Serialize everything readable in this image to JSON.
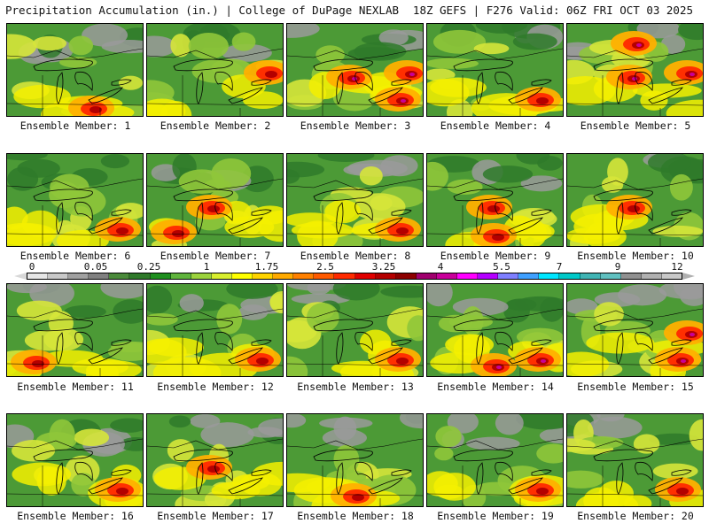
{
  "header": {
    "title": "Precipitation Accumulation (in.) | College of DuPage NEXLAB",
    "run_info": "18Z GEFS | F276 Valid: 06Z FRI OCT 03 2025"
  },
  "caption_prefix": "Ensemble Member: ",
  "members": [
    {
      "number": "1",
      "label": "Ensemble Member: 1",
      "heavy": [
        "south-center"
      ]
    },
    {
      "number": "2",
      "label": "Ensemble Member: 2",
      "heavy": [
        "east"
      ]
    },
    {
      "number": "3",
      "label": "Ensemble Member: 3",
      "heavy": [
        "center",
        "east",
        "southeast"
      ]
    },
    {
      "number": "4",
      "label": "Ensemble Member: 4",
      "heavy": [
        "southeast"
      ]
    },
    {
      "number": "5",
      "label": "Ensemble Member: 5",
      "heavy": [
        "north",
        "east",
        "center"
      ]
    },
    {
      "number": "6",
      "label": "Ensemble Member: 6",
      "heavy": [
        "southeast"
      ]
    },
    {
      "number": "7",
      "label": "Ensemble Member: 7",
      "heavy": [
        "southwest",
        "center"
      ]
    },
    {
      "number": "8",
      "label": "Ensemble Member: 8",
      "heavy": [
        "southeast"
      ]
    },
    {
      "number": "9",
      "label": "Ensemble Member: 9",
      "heavy": [
        "south",
        "center"
      ]
    },
    {
      "number": "10",
      "label": "Ensemble Member: 10",
      "heavy": [
        "center"
      ]
    },
    {
      "number": "11",
      "label": "Ensemble Member: 11",
      "heavy": [
        "southwest"
      ]
    },
    {
      "number": "12",
      "label": "Ensemble Member: 12",
      "heavy": [
        "southeast"
      ]
    },
    {
      "number": "13",
      "label": "Ensemble Member: 13",
      "heavy": [
        "southeast"
      ]
    },
    {
      "number": "14",
      "label": "Ensemble Member: 14",
      "heavy": [
        "southeast",
        "south"
      ]
    },
    {
      "number": "15",
      "label": "Ensemble Member: 15",
      "heavy": [
        "east",
        "southeast"
      ]
    },
    {
      "number": "16",
      "label": "Ensemble Member: 16",
      "heavy": [
        "southeast"
      ]
    },
    {
      "number": "17",
      "label": "Ensemble Member: 17",
      "heavy": [
        "center"
      ]
    },
    {
      "number": "18",
      "label": "Ensemble Member: 18",
      "heavy": [
        "south"
      ]
    },
    {
      "number": "19",
      "label": "Ensemble Member: 19",
      "heavy": [
        "southeast"
      ]
    },
    {
      "number": "20",
      "label": "Ensemble Member: 20",
      "heavy": [
        "southeast"
      ]
    }
  ],
  "colorbar": {
    "ticks": [
      "0",
      "0.05",
      "0.25",
      "1",
      "1.75",
      "2.5",
      "3.25",
      "4",
      "5.5",
      "7",
      "9",
      "12"
    ],
    "colors": [
      "#e6e6e6",
      "#c8c8c8",
      "#a0a0a0",
      "#808080",
      "#4a8a3a",
      "#2f7a2a",
      "#1e8f1e",
      "#5fb43c",
      "#9bd23c",
      "#d8ee2e",
      "#ffff00",
      "#ffd400",
      "#ffaa00",
      "#ff8000",
      "#ff5a00",
      "#ff2a00",
      "#e00000",
      "#b40000",
      "#8c0000",
      "#a0006e",
      "#c8009a",
      "#ff00ff",
      "#b400ff",
      "#7f7fff",
      "#3fa0ff",
      "#00e6ff",
      "#00c8c8",
      "#40b4b4",
      "#60c0c0",
      "#909090",
      "#b0b0b0",
      "#c8c8c8"
    ]
  },
  "palette": {
    "gray": "#9a9a9a",
    "dark_green": "#2f7a2a",
    "green": "#4c9a36",
    "light_green": "#8fc63a",
    "yellow_green": "#d6e63a",
    "yellow": "#f4f000",
    "orange": "#ffb000",
    "red": "#ff2800",
    "dark_red": "#b40000",
    "magenta": "#c8009a"
  }
}
